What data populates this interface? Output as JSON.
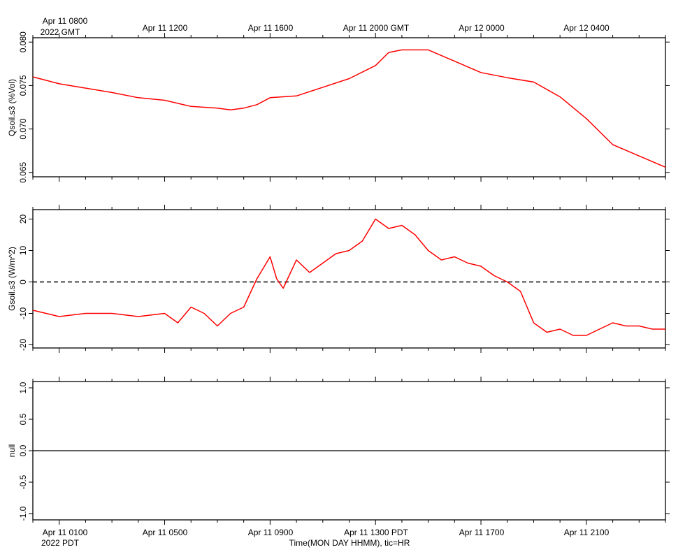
{
  "chart_data": [
    {
      "type": "line",
      "ylabel": "Qsoil.s3 (%Vol)",
      "ylim": [
        0.0645,
        0.0805
      ],
      "yticks": [
        0.065,
        0.07,
        0.075,
        0.08
      ],
      "ytick_labels": [
        "0.065",
        "0.070",
        "0.075",
        "0.080"
      ],
      "top_axis_labels": [
        {
          "line1": "Apr 11 0800",
          "line2": "2022 GMT"
        },
        {
          "line1": "Apr 11 1200",
          "line2": ""
        },
        {
          "line1": "Apr 11 1600",
          "line2": ""
        },
        {
          "line1": "Apr 11 2000 GMT",
          "line2": ""
        },
        {
          "line1": "Apr 12 0000",
          "line2": ""
        },
        {
          "line1": "Apr 12 0400",
          "line2": ""
        }
      ],
      "series": [
        {
          "color": "#ff0000",
          "x": [
            "Apr 11 0000",
            "Apr 11 0100",
            "Apr 11 0200",
            "Apr 11 0300",
            "Apr 11 0400",
            "Apr 11 0500",
            "Apr 11 0600",
            "Apr 11 0700",
            "Apr 11 0730",
            "Apr 11 0800",
            "Apr 11 0830",
            "Apr 11 0900",
            "Apr 11 1000",
            "Apr 11 1100",
            "Apr 11 1200",
            "Apr 11 1300",
            "Apr 11 1330",
            "Apr 11 1400",
            "Apr 11 1500",
            "Apr 11 1600",
            "Apr 11 1700",
            "Apr 11 1800",
            "Apr 11 1900",
            "Apr 11 2000",
            "Apr 11 2100",
            "Apr 11 2200",
            "Apr 11 2300",
            "Apr 12 0000"
          ],
          "values": [
            0.076,
            0.0752,
            0.0747,
            0.0742,
            0.0736,
            0.0733,
            0.0726,
            0.0724,
            0.0722,
            0.0724,
            0.0728,
            0.0736,
            0.0738,
            0.0748,
            0.0758,
            0.0773,
            0.0788,
            0.0791,
            0.0791,
            0.0778,
            0.0765,
            0.0759,
            0.0754,
            0.0737,
            0.0712,
            0.0682,
            0.0669,
            0.0656
          ]
        }
      ]
    },
    {
      "type": "line",
      "ylabel": "Gsoil.s3 (W/m^2)",
      "ylim": [
        -21,
        23
      ],
      "yticks": [
        -20,
        -10,
        0,
        10,
        20
      ],
      "ytick_labels": [
        "-20",
        "-10",
        "0",
        "10",
        "20"
      ],
      "reference_line": {
        "y": 0,
        "style": "dashed"
      },
      "series": [
        {
          "color": "#ff0000",
          "x": [
            "Apr 11 0000",
            "Apr 11 0100",
            "Apr 11 0200",
            "Apr 11 0300",
            "Apr 11 0400",
            "Apr 11 0500",
            "Apr 11 0530",
            "Apr 11 0600",
            "Apr 11 0630",
            "Apr 11 0700",
            "Apr 11 0730",
            "Apr 11 0800",
            "Apr 11 0830",
            "Apr 11 0900",
            "Apr 11 0915",
            "Apr 11 0930",
            "Apr 11 1000",
            "Apr 11 1030",
            "Apr 11 1100",
            "Apr 11 1130",
            "Apr 11 1200",
            "Apr 11 1230",
            "Apr 11 1300",
            "Apr 11 1330",
            "Apr 11 1400",
            "Apr 11 1430",
            "Apr 11 1500",
            "Apr 11 1530",
            "Apr 11 1600",
            "Apr 11 1630",
            "Apr 11 1700",
            "Apr 11 1730",
            "Apr 11 1800",
            "Apr 11 1830",
            "Apr 11 1900",
            "Apr 11 1930",
            "Apr 11 2000",
            "Apr 11 2030",
            "Apr 11 2100",
            "Apr 11 2130",
            "Apr 11 2200",
            "Apr 11 2230",
            "Apr 11 2300",
            "Apr 11 2330",
            "Apr 12 0000"
          ],
          "values": [
            -9,
            -11,
            -10,
            -10,
            -11,
            -10,
            -13,
            -8,
            -10,
            -14,
            -10,
            -8,
            1,
            8,
            1,
            -2,
            7,
            3,
            6,
            9,
            10,
            13,
            20,
            17,
            18,
            15,
            10,
            7,
            8,
            6,
            5,
            2,
            0,
            -3,
            -13,
            -16,
            -15,
            -17,
            -17,
            -15,
            -13,
            -14,
            -14,
            -15,
            -15
          ]
        }
      ]
    },
    {
      "type": "line",
      "ylabel": "null",
      "ylim": [
        -1.1,
        1.1
      ],
      "yticks": [
        -1.0,
        -0.5,
        0.0,
        0.5,
        1.0
      ],
      "ytick_labels": [
        "-1.0",
        "-0.5",
        "0.0",
        "0.5",
        "1.0"
      ],
      "xlabel": "Time(MON DAY HHMM), tic=HR",
      "bottom_axis_labels": [
        {
          "line1": "Apr 11 0100",
          "line2": "2022 PDT"
        },
        {
          "line1": "Apr 11 0500",
          "line2": ""
        },
        {
          "line1": "Apr 11 0900",
          "line2": ""
        },
        {
          "line1": "Apr 11 1300 PDT",
          "line2": ""
        },
        {
          "line1": "Apr 11 1700",
          "line2": ""
        },
        {
          "line1": "Apr 11 2100",
          "line2": ""
        }
      ],
      "series": [
        {
          "color": "#000000",
          "x": [
            "Apr 11 0000",
            "Apr 12 0000"
          ],
          "values": [
            0,
            0
          ]
        }
      ]
    }
  ]
}
